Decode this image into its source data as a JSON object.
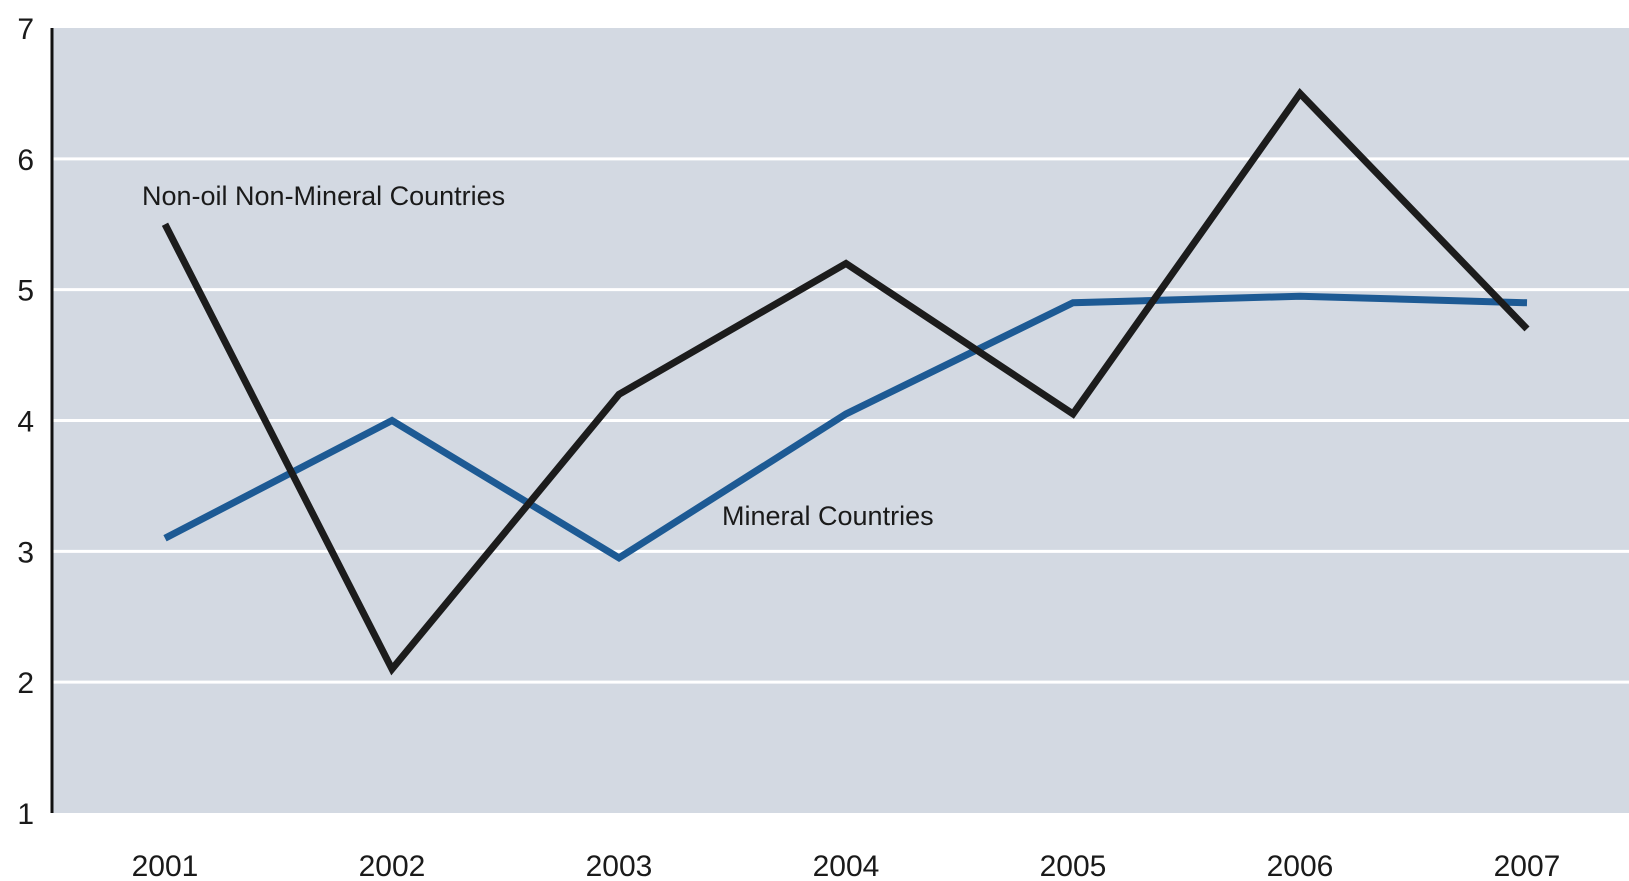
{
  "chart_data": {
    "type": "line",
    "title": "",
    "xlabel": "",
    "ylabel": "",
    "categories": [
      "2001",
      "2002",
      "2003",
      "2004",
      "2005",
      "2006",
      "2007"
    ],
    "ylim": [
      1,
      7
    ],
    "yticks": [
      "1",
      "2",
      "3",
      "4",
      "5",
      "6",
      "7"
    ],
    "grid": true,
    "series": [
      {
        "name": "Non-oil Non-Mineral Countries",
        "color": "#1c1c1c",
        "values": [
          5.5,
          2.1,
          4.2,
          5.2,
          4.05,
          6.5,
          4.7
        ]
      },
      {
        "name": "Mineral Countries",
        "color": "#1d5a94",
        "values": [
          3.1,
          4.0,
          2.95,
          4.05,
          4.9,
          4.95,
          4.9
        ]
      }
    ],
    "background_color": "#d3d9e2",
    "gridline_color": "#ffffff"
  }
}
